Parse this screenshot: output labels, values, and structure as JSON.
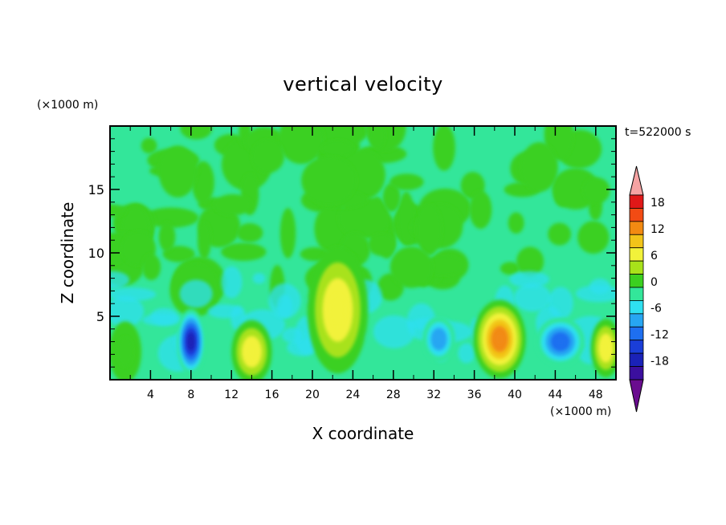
{
  "chart_data": {
    "type": "heatmap",
    "title": "vertical velocity",
    "xlabel": "X coordinate",
    "ylabel": "Z coordinate",
    "x_unit": "(×1000 m)",
    "y_unit": "(×1000 m)",
    "time_label": "t=522000 s",
    "xlim": [
      0,
      50
    ],
    "ylim": [
      0,
      20
    ],
    "x_ticks": [
      4,
      8,
      12,
      16,
      20,
      24,
      28,
      32,
      36,
      40,
      44,
      48
    ],
    "y_ticks": [
      5,
      10,
      15
    ],
    "colorbar": {
      "levels": [
        -21,
        -18,
        -15,
        -12,
        -9,
        -6,
        -3,
        0,
        3,
        6,
        9,
        12,
        15,
        18,
        21
      ],
      "labels": [
        18,
        12,
        6,
        0,
        -6,
        -12,
        -18
      ],
      "colors": [
        "#6a0d8f",
        "#3b0f9e",
        "#1a22b8",
        "#1a3ed8",
        "#1e6ff0",
        "#27a6f2",
        "#2fe0f0",
        "#33e69a",
        "#3bd020",
        "#a8e21a",
        "#f2f23a",
        "#f2c419",
        "#f28a12",
        "#f24b14",
        "#e01818",
        "#f5a3a3"
      ]
    },
    "cells": [
      {
        "x": 1.5,
        "z": 2.2,
        "w": 0.5
      },
      {
        "x": 8,
        "z": 3.0,
        "w": -17
      },
      {
        "x": 14,
        "z": 2.2,
        "w": 8
      },
      {
        "x": 22.5,
        "z": 5.5,
        "w": 8
      },
      {
        "x": 32.5,
        "z": 3.2,
        "w": -9
      },
      {
        "x": 38.5,
        "z": 3.2,
        "w": 14
      },
      {
        "x": 44.5,
        "z": 3.0,
        "w": -11
      },
      {
        "x": 49,
        "z": 2.5,
        "w": 8
      }
    ]
  }
}
